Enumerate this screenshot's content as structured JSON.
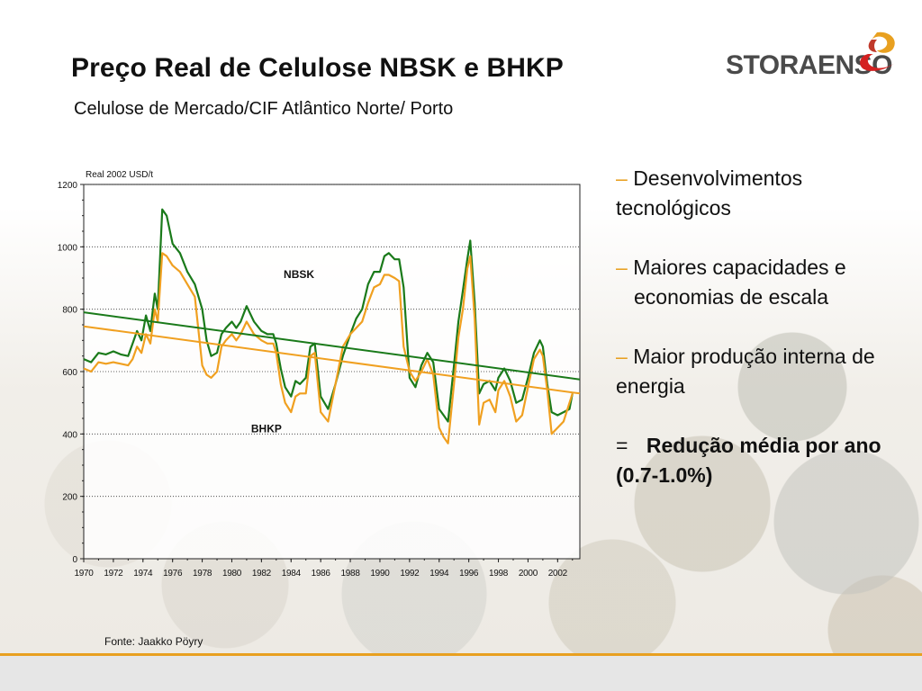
{
  "title": "Preço Real de Celulose NBSK e BHKP",
  "subtitle": "Celulose de Mercado/CIF Atlântico Norte/ Porto",
  "logo": {
    "text": "STORAENSO"
  },
  "bullets": [
    {
      "dash": "–",
      "line1": "Desenvolvimentos",
      "line2": "tecnológicos"
    },
    {
      "dash": "–",
      "line1": "Maiores capacidades e",
      "line2": "economias de escala"
    },
    {
      "dash": "–",
      "line1": "Maior produção interna de",
      "line2": "energia"
    }
  ],
  "conclusion": {
    "prefix": "=",
    "line1": "Redução média por ano",
    "line2": "(0.7-1.0%)"
  },
  "source": "Fonte: Jaakko Pöyry",
  "colors": {
    "nbsk": "#1a7a1a",
    "bhkp": "#f0a020",
    "accent": "#e8a020"
  },
  "chart_data": {
    "type": "line",
    "unit_label": "Real 2002 USD/t",
    "ylim": [
      0,
      1200
    ],
    "yticks": [
      "0",
      "200",
      "400",
      "600",
      "800",
      "1000",
      "1200"
    ],
    "xlim": [
      1970,
      2003.5
    ],
    "xticks": [
      "1970",
      "1972",
      "1974",
      "1976",
      "1978",
      "1980",
      "1982",
      "1984",
      "1986",
      "1988",
      "1990",
      "1992",
      "1994",
      "1996",
      "1998",
      "2000",
      "2002"
    ],
    "grid": "horizontal dotted",
    "series": [
      {
        "name": "NBSK",
        "x": [
          1970,
          1970.5,
          1971,
          1971.5,
          1972,
          1972.5,
          1973,
          1973.3,
          1973.6,
          1973.9,
          1974.2,
          1974.5,
          1974.8,
          1975,
          1975.3,
          1975.6,
          1976,
          1976.5,
          1977,
          1977.5,
          1978,
          1978.3,
          1978.6,
          1979,
          1979.3,
          1979.6,
          1980,
          1980.3,
          1980.6,
          1981,
          1981.5,
          1982,
          1982.4,
          1982.8,
          1983,
          1983.3,
          1983.6,
          1984,
          1984.3,
          1984.6,
          1985,
          1985.3,
          1985.6,
          1986,
          1986.5,
          1987,
          1987.5,
          1988,
          1988.4,
          1988.8,
          1989.2,
          1989.6,
          1990,
          1990.3,
          1990.6,
          1991,
          1991.3,
          1991.6,
          1992,
          1992.4,
          1992.8,
          1993.2,
          1993.6,
          1994,
          1994.3,
          1994.6,
          1995,
          1995.3,
          1995.6,
          1995.9,
          1996.1,
          1996.4,
          1996.7,
          1997,
          1997.4,
          1997.8,
          1998,
          1998.4,
          1998.8,
          1999.2,
          1999.6,
          2000,
          2000.4,
          2000.8,
          2001,
          2001.3,
          2001.6,
          2002,
          2002.4,
          2002.8,
          2003
        ],
        "values": [
          640,
          630,
          660,
          655,
          665,
          655,
          650,
          690,
          730,
          700,
          780,
          730,
          850,
          800,
          1120,
          1100,
          1010,
          980,
          920,
          880,
          800,
          700,
          650,
          660,
          720,
          740,
          760,
          740,
          760,
          810,
          760,
          730,
          720,
          720,
          690,
          610,
          550,
          520,
          570,
          560,
          580,
          680,
          690,
          520,
          480,
          560,
          650,
          720,
          770,
          800,
          880,
          920,
          920,
          970,
          980,
          960,
          960,
          870,
          580,
          550,
          620,
          660,
          630,
          480,
          460,
          440,
          620,
          760,
          860,
          960,
          1020,
          820,
          530,
          560,
          570,
          540,
          580,
          610,
          570,
          500,
          510,
          580,
          660,
          700,
          680,
          560,
          470,
          460,
          470,
          480,
          530
        ]
      },
      {
        "name": "BHKP",
        "x": [
          1970,
          1970.5,
          1971,
          1971.5,
          1972,
          1972.5,
          1973,
          1973.3,
          1973.6,
          1973.9,
          1974.2,
          1974.5,
          1974.8,
          1975,
          1975.3,
          1975.6,
          1976,
          1976.5,
          1977,
          1977.5,
          1978,
          1978.3,
          1978.6,
          1979,
          1979.3,
          1979.6,
          1980,
          1980.3,
          1980.6,
          1981,
          1981.5,
          1982,
          1982.4,
          1982.8,
          1983,
          1983.3,
          1983.6,
          1984,
          1984.3,
          1984.6,
          1985,
          1985.3,
          1985.6,
          1986,
          1986.5,
          1987,
          1987.5,
          1988,
          1988.4,
          1988.8,
          1989.2,
          1989.6,
          1990,
          1990.3,
          1990.6,
          1991,
          1991.3,
          1991.6,
          1992,
          1992.4,
          1992.8,
          1993.2,
          1993.6,
          1994,
          1994.3,
          1994.6,
          1995,
          1995.3,
          1995.6,
          1995.9,
          1996.1,
          1996.4,
          1996.7,
          1997,
          1997.4,
          1997.8,
          1998,
          1998.4,
          1998.8,
          1999.2,
          1999.6,
          2000,
          2000.4,
          2000.8,
          2001,
          2001.3,
          2001.6,
          2002,
          2002.4,
          2002.8,
          2003
        ],
        "values": [
          610,
          600,
          630,
          625,
          630,
          625,
          620,
          640,
          680,
          660,
          720,
          690,
          800,
          760,
          980,
          970,
          940,
          920,
          880,
          840,
          620,
          590,
          580,
          600,
          680,
          700,
          720,
          700,
          720,
          760,
          720,
          700,
          690,
          690,
          660,
          560,
          500,
          470,
          520,
          530,
          530,
          650,
          660,
          470,
          440,
          560,
          680,
          720,
          740,
          760,
          820,
          870,
          880,
          910,
          910,
          900,
          890,
          680,
          600,
          570,
          600,
          640,
          590,
          420,
          390,
          370,
          560,
          710,
          800,
          930,
          970,
          770,
          430,
          500,
          510,
          470,
          540,
          570,
          520,
          440,
          460,
          550,
          640,
          670,
          650,
          540,
          400,
          420,
          440,
          500,
          530
        ]
      },
      {
        "name": "",
        "trend": true,
        "x": [
          1970,
          2003.5
        ],
        "values": [
          790,
          575
        ]
      },
      {
        "name": "",
        "trend": true,
        "x": [
          1970,
          2003.5
        ],
        "values": [
          745,
          530
        ]
      }
    ],
    "annotations": [
      "NBSK",
      "BHKP"
    ]
  }
}
